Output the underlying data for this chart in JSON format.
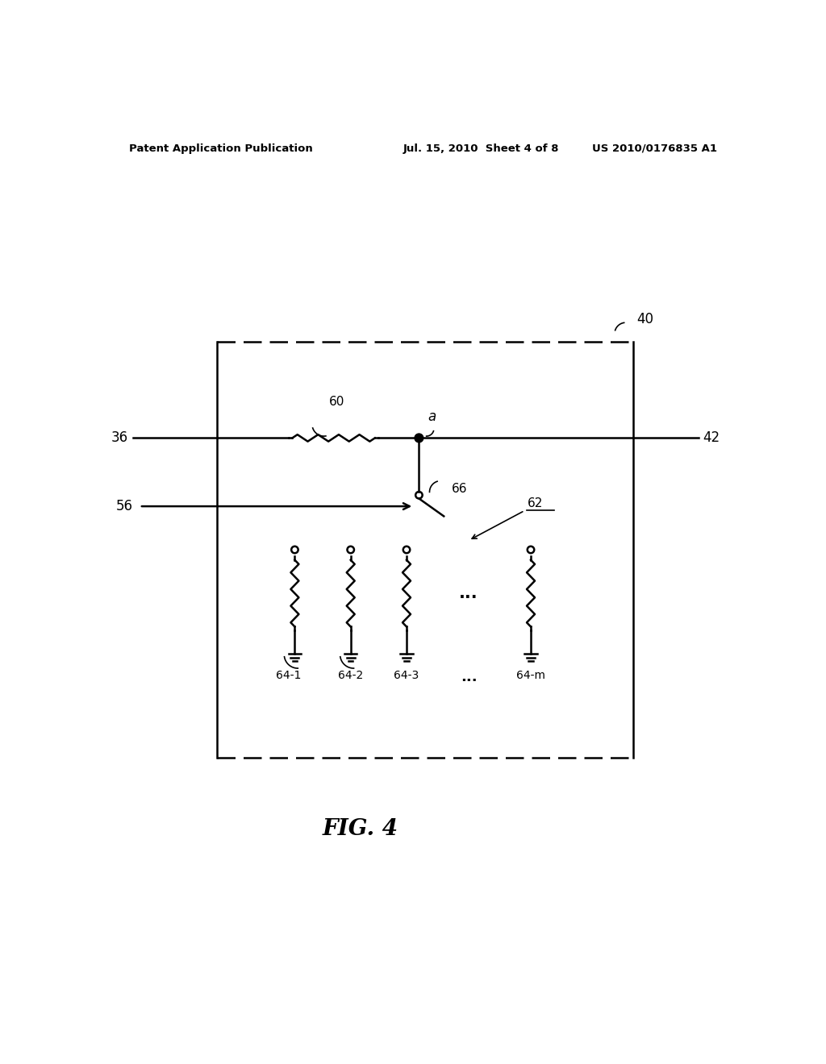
{
  "header_left": "Patent Application Publication",
  "header_center": "Jul. 15, 2010  Sheet 4 of 8",
  "header_right": "US 2010/0176835 A1",
  "bg_color": "#ffffff",
  "label_36": "36",
  "label_42": "42",
  "label_40": "40",
  "label_56": "56",
  "label_60": "60",
  "label_a": "a",
  "label_66": "66",
  "label_62": "62",
  "label_64_1": "64-1",
  "label_64_2": "64-2",
  "label_64_3": "64-3",
  "label_64_m": "64-m",
  "label_dots": "...",
  "fig_label": "FIG. 4"
}
